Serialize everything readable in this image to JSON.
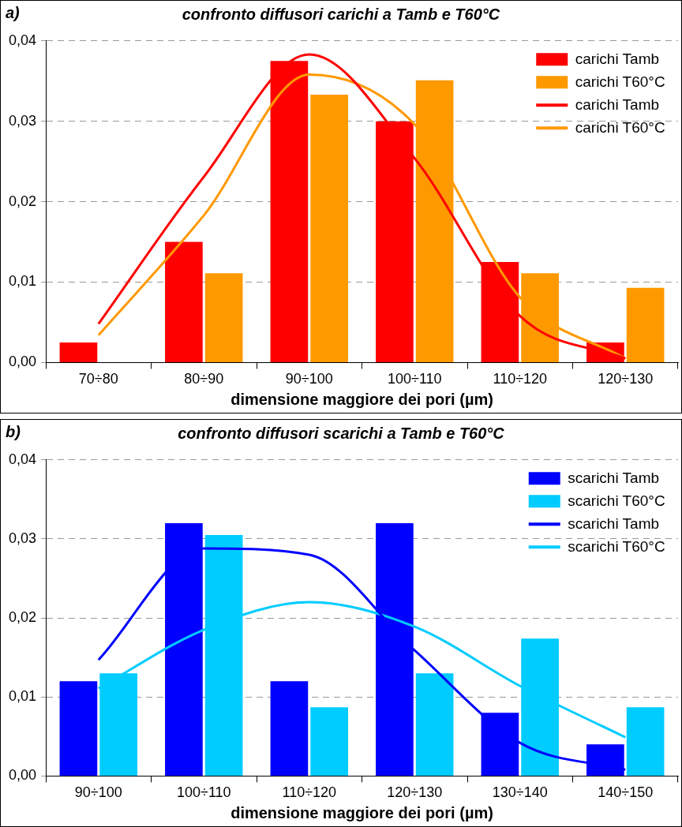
{
  "chart_data": [
    {
      "type": "bar",
      "title": "confronto diffusori carichi a Tamb e T60°C",
      "annotations": [
        "a)"
      ],
      "xlabel": "dimensione maggiore dei pori (µm)",
      "categories": [
        "70÷80",
        "80÷90",
        "90÷100",
        "100÷110",
        "110÷120",
        "120÷130"
      ],
      "ylim": [
        0,
        0.04
      ],
      "yticks": [
        {
          "value": 0,
          "label": "0,00"
        },
        {
          "value": 0.01,
          "label": "0,01"
        },
        {
          "value": 0.02,
          "label": "0,02"
        },
        {
          "value": 0.03,
          "label": "0,03"
        },
        {
          "value": 0.04,
          "label": "0,04"
        }
      ],
      "grid": "y",
      "legend": "top right",
      "marker": "none",
      "line_style": "solid",
      "series": [
        {
          "name": "carichi Tamb",
          "type": "bar",
          "color": "#ff0000",
          "values": [
            0.0025,
            0.015,
            0.0375,
            0.03,
            0.0125,
            0.0025
          ]
        },
        {
          "name": "carichi T60°C",
          "type": "bar",
          "color": "#ff9900",
          "values": [
            0,
            0.0111,
            0.0333,
            0.0351,
            0.0111,
            0.0093
          ]
        },
        {
          "name": "carichi Tamb",
          "type": "line",
          "color": "#ff0000",
          "values": [
            0.0048,
            0.0231,
            0.0383,
            0.0254,
            0.0058,
            0.0005
          ]
        },
        {
          "name": "carichi T60°C",
          "type": "line",
          "color": "#ff9900",
          "values": [
            0.0034,
            0.0183,
            0.0358,
            0.0296,
            0.0081,
            0.0005
          ]
        }
      ]
    },
    {
      "type": "bar",
      "title": "confronto diffusori scarichi a Tamb e T60°C",
      "annotations": [
        "b)"
      ],
      "xlabel": "dimensione maggiore dei pori (µm)",
      "categories": [
        "90÷100",
        "100÷110",
        "110÷120",
        "120÷130",
        "130÷140",
        "140÷150"
      ],
      "ylim": [
        0,
        0.04
      ],
      "yticks": [
        {
          "value": 0,
          "label": "0,00"
        },
        {
          "value": 0.01,
          "label": "0,01"
        },
        {
          "value": 0.02,
          "label": "0,02"
        },
        {
          "value": 0.03,
          "label": "0,03"
        },
        {
          "value": 0.04,
          "label": "0,04"
        }
      ],
      "grid": "y",
      "legend": "top right",
      "marker": "none",
      "line_style": "solid",
      "series": [
        {
          "name": "scarichi Tamb",
          "type": "bar",
          "color": "#0000ff",
          "values": [
            0.012,
            0.032,
            0.012,
            0.032,
            0.008,
            0.004
          ]
        },
        {
          "name": "scarichi T60°C",
          "type": "bar",
          "color": "#00ccff",
          "values": [
            0.013,
            0.0305,
            0.0087,
            0.013,
            0.0174,
            0.0087
          ]
        },
        {
          "name": "scarichi Tamb",
          "type": "line",
          "color": "#0000ff",
          "values": [
            0.0147,
            0.0288,
            0.028,
            0.0159,
            0.0042,
            0.0008
          ]
        },
        {
          "name": "scarichi T60°C",
          "type": "line",
          "color": "#00ccff",
          "values": [
            0.0111,
            0.0185,
            0.022,
            0.0189,
            0.0114,
            0.0049
          ]
        }
      ]
    }
  ]
}
